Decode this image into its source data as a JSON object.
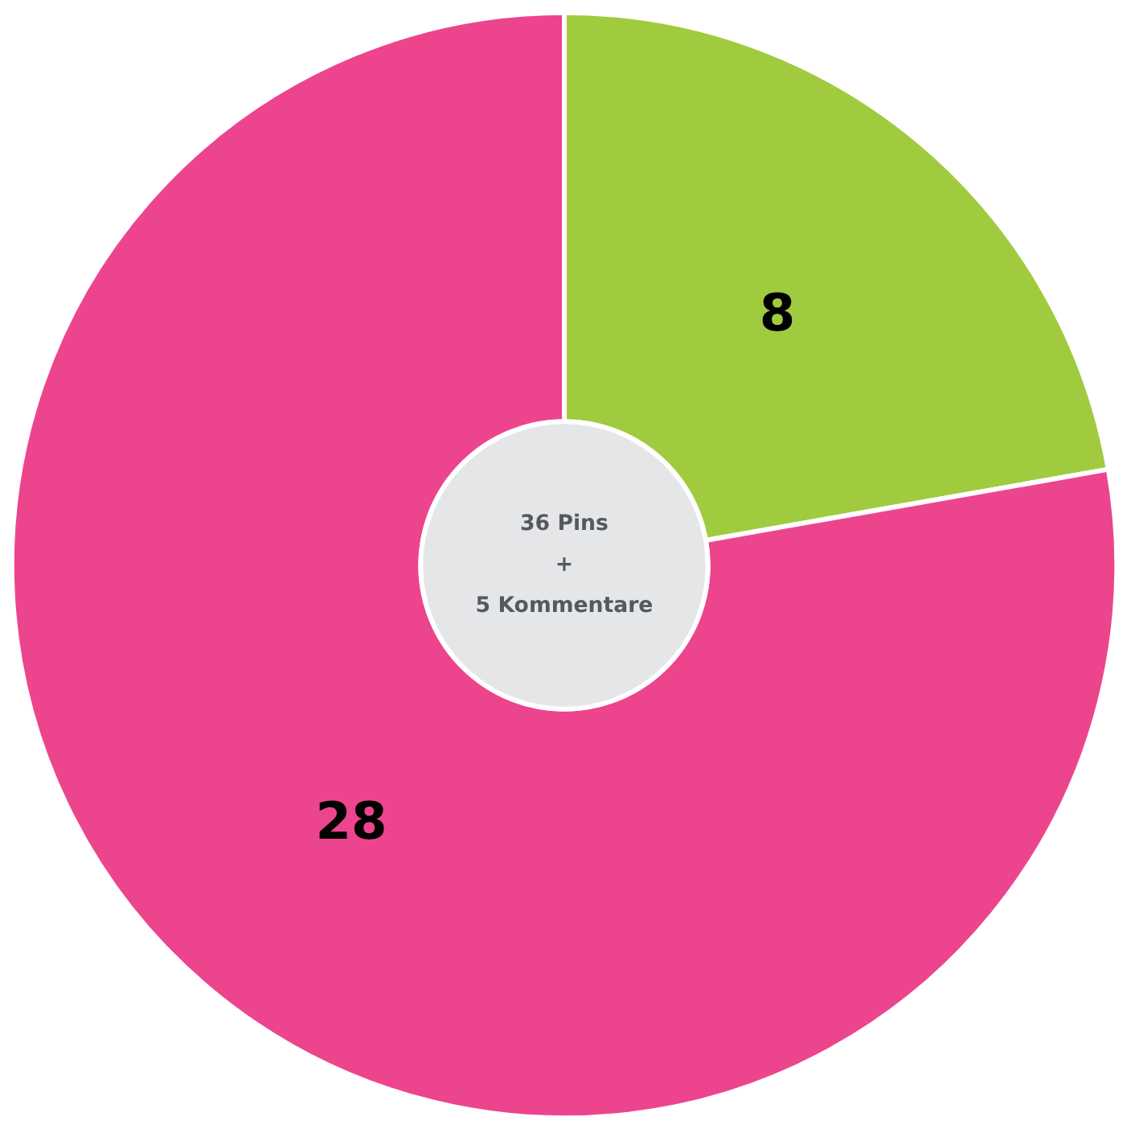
{
  "chart_data": {
    "type": "donut",
    "categories": [
      null,
      null
    ],
    "values": [
      8,
      28
    ],
    "colors": [
      "#a0cb3f",
      "#ec458e"
    ],
    "data_labels": true,
    "annotations": [
      "36 Pins\n+\n5 Kommentare"
    ]
  }
}
